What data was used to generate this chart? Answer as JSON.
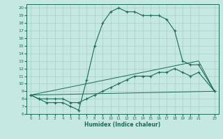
{
  "xlabel": "Humidex (Indice chaleur)",
  "xlim": [
    -0.5,
    23.5
  ],
  "ylim": [
    6,
    20.5
  ],
  "xticks": [
    0,
    1,
    2,
    3,
    4,
    5,
    6,
    7,
    8,
    9,
    10,
    11,
    12,
    13,
    14,
    15,
    16,
    17,
    18,
    19,
    20,
    21,
    23
  ],
  "yticks": [
    6,
    7,
    8,
    9,
    10,
    11,
    12,
    13,
    14,
    15,
    16,
    17,
    18,
    19,
    20
  ],
  "bg_color": "#c5e8e2",
  "line_color": "#1a6b5a",
  "grid_color": "#a8cfc8",
  "curve1_x": [
    0,
    1,
    2,
    3,
    4,
    5,
    6,
    7,
    8,
    9,
    10,
    11,
    12,
    13,
    14,
    15,
    16,
    17,
    18,
    19,
    20,
    21,
    23
  ],
  "curve1_y": [
    8.5,
    8.0,
    7.5,
    7.5,
    7.5,
    7.0,
    6.5,
    10.5,
    15.0,
    18.0,
    19.5,
    20.0,
    19.5,
    19.5,
    19.0,
    19.0,
    19.0,
    18.5,
    17.0,
    13.0,
    12.5,
    12.5,
    9.0
  ],
  "curve2_x": [
    0,
    1,
    2,
    3,
    4,
    5,
    6,
    7,
    8,
    9,
    10,
    11,
    12,
    13,
    14,
    15,
    16,
    17,
    18,
    19,
    20,
    21,
    23
  ],
  "curve2_y": [
    8.5,
    8.0,
    8.0,
    8.0,
    8.0,
    7.5,
    7.5,
    8.0,
    8.5,
    9.0,
    9.5,
    10.0,
    10.5,
    11.0,
    11.0,
    11.0,
    11.5,
    11.5,
    12.0,
    11.5,
    11.0,
    11.5,
    9.0
  ],
  "curve3_x": [
    0,
    23
  ],
  "curve3_y": [
    8.5,
    9.0
  ],
  "curve4_x": [
    0,
    21,
    23
  ],
  "curve4_y": [
    8.5,
    13.0,
    9.0
  ]
}
